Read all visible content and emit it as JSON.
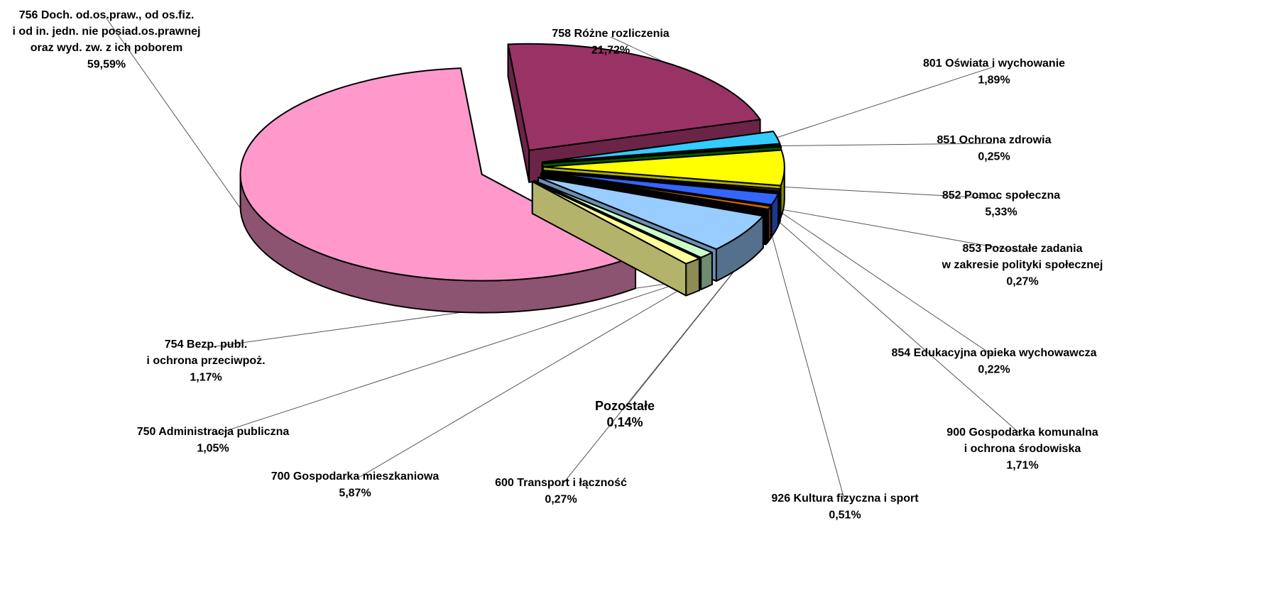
{
  "chart_data": {
    "type": "pie",
    "categories": [
      "758 Różne rozliczenia",
      "801 Oświata i wychowanie",
      "851 Ochrona zdrowia",
      "852 Pomoc społeczna",
      "853 Pozostałe zadania\nw zakresie  polityki społecznej",
      "854 Edukacyjna opieka wychowawcza",
      "900 Gospodarka komunalna\ni ochrona środowiska",
      "926 Kultura fizyczna i sport",
      "Pozostałe",
      "600 Transport i łączność",
      "700 Gospodarka mieszkaniowa",
      "750 Administracja publiczna",
      "754 Bezp. publ.\ni ochrona przeciwpoż.",
      "756 Doch. od.os.praw., od os.fiz.\ni od in. jedn. nie posiad.os.prawnej\noraz wyd. zw. z ich poborem"
    ],
    "values": [
      21.72,
      1.89,
      0.25,
      5.33,
      0.27,
      0.22,
      1.71,
      0.51,
      0.14,
      0.27,
      5.87,
      1.05,
      1.17,
      59.59
    ],
    "value_labels": [
      "21,72%",
      "1,89%",
      "0,25%",
      "5,33%",
      "0,27%",
      "0,22%",
      "1,71%",
      "0,51%",
      "0,14%",
      "0,27%",
      "5,87%",
      "1,05%",
      "1,17%",
      "59,59%"
    ],
    "colors": [
      "#993366",
      "#33ccff",
      "#008000",
      "#ffff00",
      "#996600",
      "#990099",
      "#3366ff",
      "#cc6600",
      "#990000",
      "#000000",
      "#99ccff",
      "#ccffcc",
      "#ffff99",
      "#ff99cc"
    ]
  }
}
